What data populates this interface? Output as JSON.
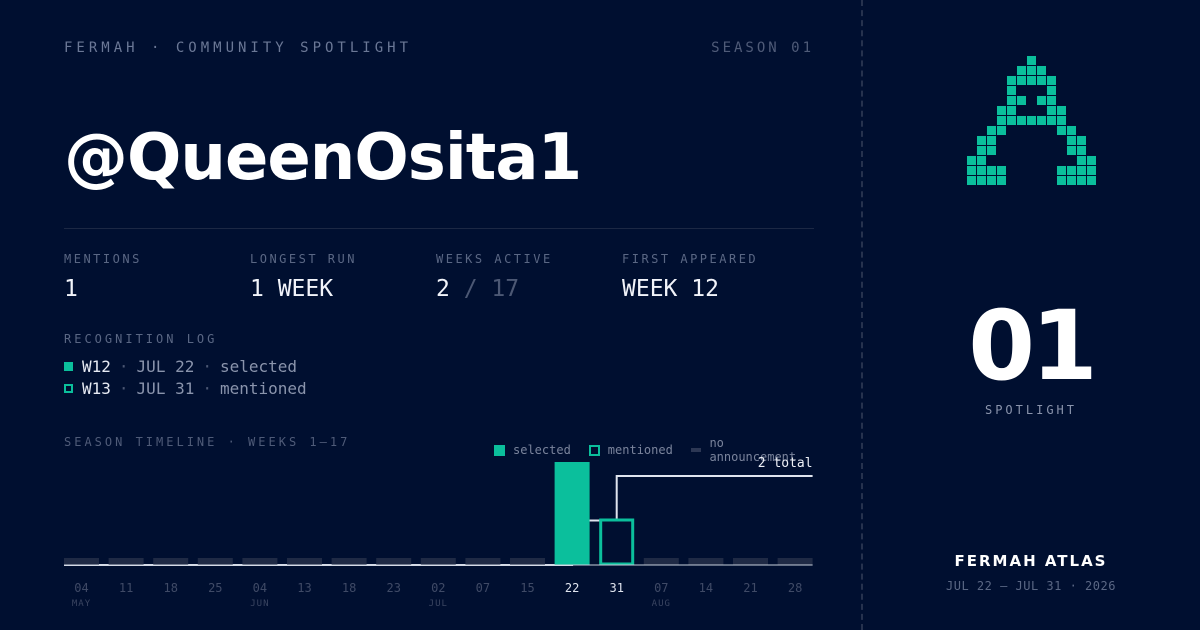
{
  "header": {
    "eyebrow": "FERMAH · COMMUNITY SPOTLIGHT",
    "season": "SEASON 01"
  },
  "handle": "@QueenOsita1",
  "stats": [
    {
      "label": "MENTIONS",
      "value": "1"
    },
    {
      "label": "LONGEST RUN",
      "value": "1 WEEK"
    },
    {
      "label": "WEEKS ACTIVE",
      "value": "2",
      "total": "/ 17"
    },
    {
      "label": "FIRST APPEARED",
      "value": "WEEK 12"
    }
  ],
  "log": {
    "title": "RECOGNITION LOG",
    "entries": [
      {
        "week": "W12",
        "date": "JUL 22",
        "status": "selected",
        "kind": "selected"
      },
      {
        "week": "W13",
        "date": "JUL 31",
        "status": "mentioned",
        "kind": "mentioned"
      }
    ],
    "separator": "·"
  },
  "timeline": {
    "title": "SEASON TIMELINE · WEEKS 1–17",
    "legend": [
      {
        "label": "selected",
        "kind": "selected"
      },
      {
        "label": "mentioned",
        "kind": "mentioned"
      },
      {
        "label": "no announcement",
        "kind": "none"
      }
    ]
  },
  "chart_data": {
    "type": "bar",
    "title": "SEASON TIMELINE · WEEKS 1–17",
    "categories": [
      "04",
      "11",
      "18",
      "25",
      "04",
      "13",
      "18",
      "23",
      "02",
      "07",
      "15",
      "22",
      "31",
      "07",
      "14",
      "21",
      "28"
    ],
    "month_labels": [
      {
        "index": 0,
        "label": "MAY"
      },
      {
        "index": 4,
        "label": "JUN"
      },
      {
        "index": 8,
        "label": "JUL"
      },
      {
        "index": 13,
        "label": "AUG"
      }
    ],
    "status": [
      "none",
      "none",
      "none",
      "none",
      "none",
      "none",
      "none",
      "none",
      "none",
      "none",
      "none",
      "selected",
      "mentioned",
      "none",
      "none",
      "none",
      "none"
    ],
    "series": [
      {
        "name": "selected",
        "values": [
          0,
          0,
          0,
          0,
          0,
          0,
          0,
          0,
          0,
          0,
          0,
          1,
          0,
          0,
          0,
          0,
          0
        ]
      },
      {
        "name": "mentioned",
        "values": [
          0,
          0,
          0,
          0,
          0,
          0,
          0,
          0,
          0,
          0,
          0,
          0,
          1,
          0,
          0,
          0,
          0
        ]
      }
    ],
    "cumulative": [
      0,
      0,
      0,
      0,
      0,
      0,
      0,
      0,
      0,
      0,
      0,
      1,
      2,
      2,
      2,
      2,
      2
    ],
    "total_label": "2 total",
    "highlight_ticks": [
      11,
      12
    ],
    "colors": {
      "selected": "#0bbf9c",
      "mentioned": "#0bbf9c",
      "none": "#1f2a45",
      "line": "#dfe4ee"
    }
  },
  "sidebar": {
    "logo_icon": "pixel-a-logo",
    "number": "01",
    "label": "SPOTLIGHT",
    "brand": "FERMAH ATLAS",
    "range": "JUL 22 — JUL 31 · 2026",
    "accent": "#0bbf9c"
  }
}
